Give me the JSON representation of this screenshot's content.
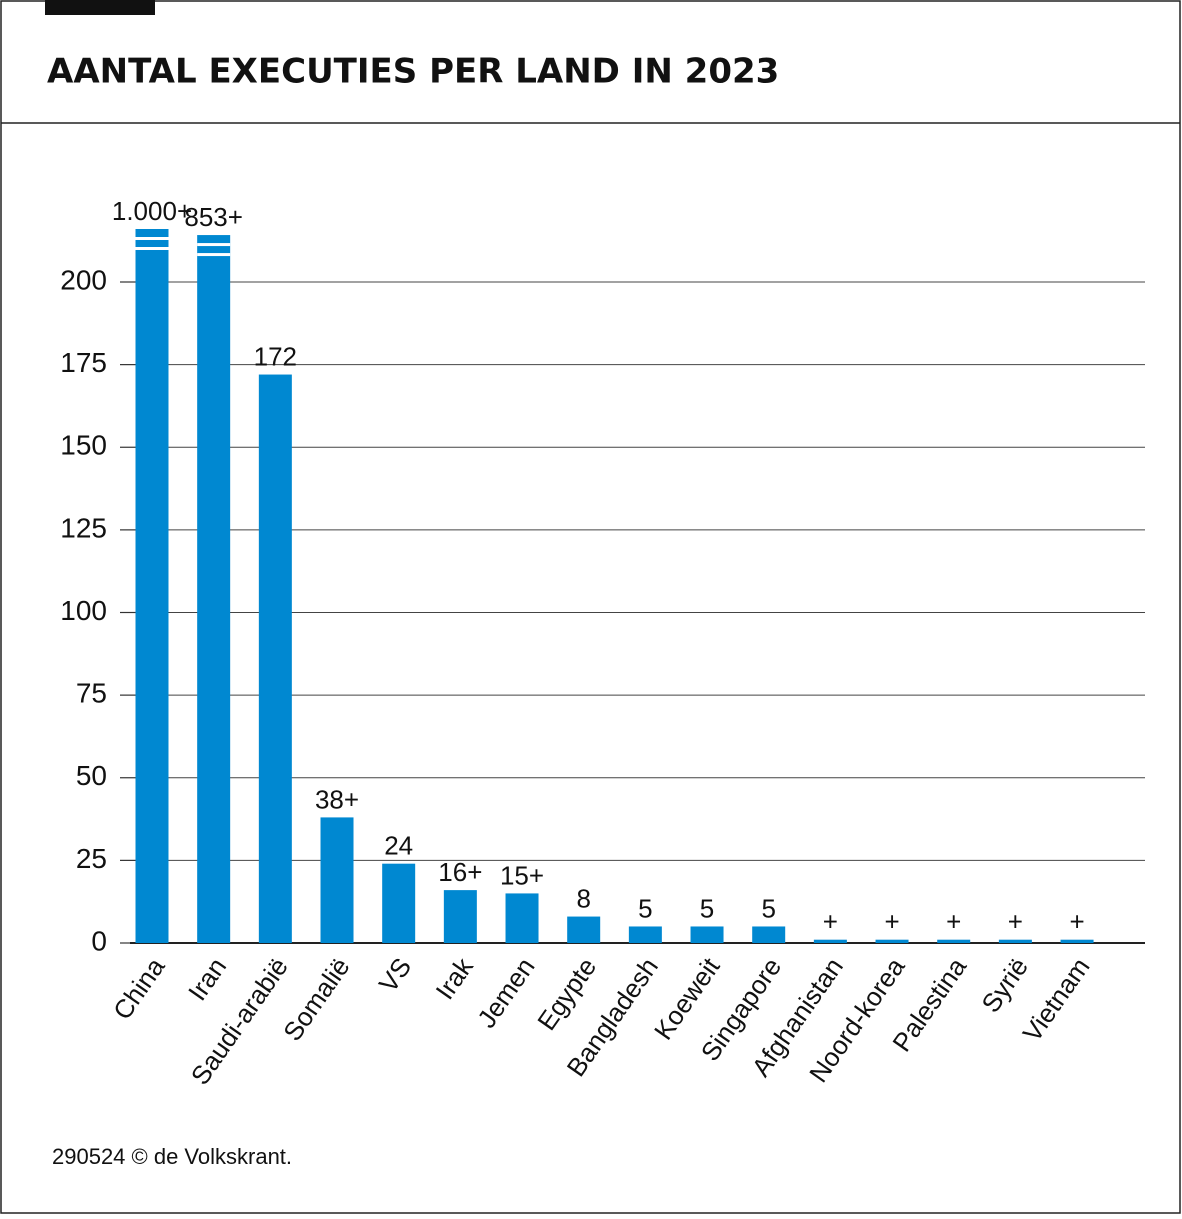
{
  "chart_data": {
    "type": "bar",
    "title": "AANTAL EXECUTIES PER LAND IN 2023",
    "categories": [
      "China",
      "Iran",
      "Saudi-arabië",
      "Somalië",
      "VS",
      "Irak",
      "Jemen",
      "Egypte",
      "Bangladesh",
      "Koeweit",
      "Singapore",
      "Afghanistan",
      "Noord-korea",
      "Palestina",
      "Syrië",
      "Vietnam"
    ],
    "values": [
      1000,
      853,
      172,
      38,
      24,
      16,
      15,
      8,
      5,
      5,
      5,
      1,
      1,
      1,
      1,
      1
    ],
    "value_labels": [
      "1.000+",
      "853+",
      "172",
      "38+",
      "24",
      "16+",
      "15+",
      "8",
      "5",
      "5",
      "5",
      "+",
      "+",
      "+",
      "+",
      "+"
    ],
    "color": "#0088d1",
    "ylim": [
      0,
      200
    ],
    "yticks": [
      0,
      25,
      50,
      75,
      100,
      125,
      150,
      175,
      200
    ],
    "grid": true,
    "source": "290524 © de Volkskrant."
  }
}
